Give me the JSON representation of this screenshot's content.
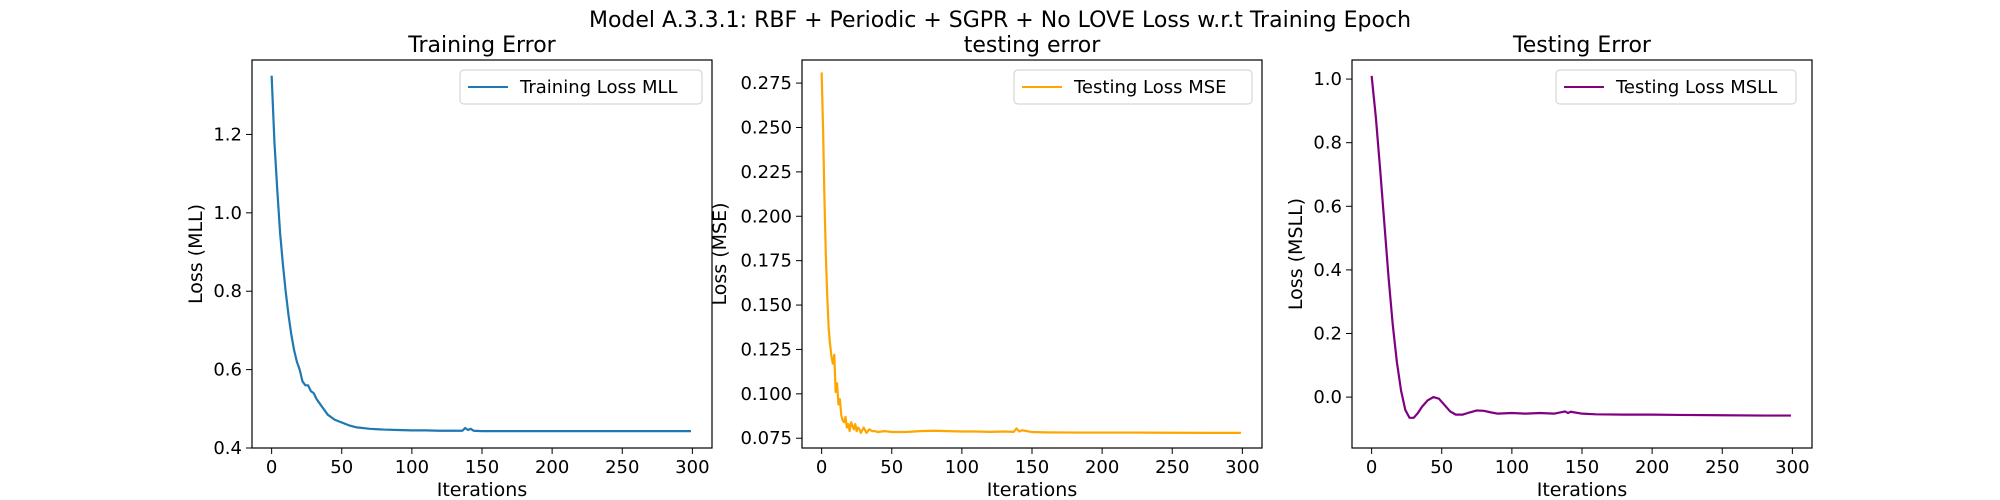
{
  "figure": {
    "title": "Model A.3.3.1: RBF + Periodic + SGPR + No LOVE Loss w.r.t Training Epoch"
  },
  "chart_data": [
    {
      "type": "line",
      "title": "Training Error",
      "xlabel": "Iterations",
      "ylabel": "Loss (MLL)",
      "xlim": [
        -14,
        314
      ],
      "ylim": [
        0.4,
        1.39
      ],
      "xticks": [
        0,
        50,
        100,
        150,
        200,
        250,
        300
      ],
      "yticks": [
        0.4,
        0.6,
        0.8,
        1.0,
        1.2
      ],
      "ytick_labels": [
        "0.4",
        "0.6",
        "0.8",
        "1.0",
        "1.2"
      ],
      "legend_position": "upper right",
      "grid": false,
      "series": [
        {
          "name": "Training Loss MLL",
          "color": "#1f77b4",
          "x": [
            0,
            2,
            4,
            6,
            8,
            10,
            12,
            14,
            16,
            18,
            20,
            22,
            24,
            26,
            28,
            30,
            32,
            34,
            36,
            38,
            40,
            45,
            50,
            55,
            60,
            70,
            80,
            90,
            100,
            110,
            120,
            130,
            136,
            138,
            140,
            142,
            144,
            150,
            160,
            180,
            200,
            220,
            250,
            280,
            299
          ],
          "y": [
            1.35,
            1.18,
            1.06,
            0.95,
            0.87,
            0.8,
            0.74,
            0.69,
            0.65,
            0.62,
            0.6,
            0.57,
            0.56,
            0.56,
            0.545,
            0.54,
            0.525,
            0.515,
            0.505,
            0.495,
            0.485,
            0.472,
            0.465,
            0.458,
            0.453,
            0.449,
            0.447,
            0.446,
            0.445,
            0.445,
            0.444,
            0.444,
            0.444,
            0.451,
            0.446,
            0.449,
            0.444,
            0.443,
            0.443,
            0.443,
            0.443,
            0.443,
            0.443,
            0.443,
            0.443
          ]
        }
      ]
    },
    {
      "type": "line",
      "title": "testing error",
      "xlabel": "Iterations",
      "ylabel": "Loss (MSE)",
      "xlim": [
        -14,
        314
      ],
      "ylim": [
        0.0695,
        0.288
      ],
      "xticks": [
        0,
        50,
        100,
        150,
        200,
        250,
        300
      ],
      "yticks": [
        0.075,
        0.1,
        0.125,
        0.15,
        0.175,
        0.2,
        0.225,
        0.25,
        0.275
      ],
      "ytick_labels": [
        "0.075",
        "0.100",
        "0.125",
        "0.150",
        "0.175",
        "0.200",
        "0.225",
        "0.250",
        "0.275"
      ],
      "legend_position": "upper right",
      "grid": false,
      "series": [
        {
          "name": "Testing Loss MSE",
          "color": "#ffa500",
          "x": [
            0,
            1,
            2,
            3,
            4,
            5,
            6,
            7,
            8,
            9,
            10,
            11,
            12,
            13,
            14,
            15,
            16,
            17,
            18,
            19,
            20,
            21,
            22,
            23,
            24,
            25,
            26,
            27,
            28,
            30,
            32,
            34,
            36,
            38,
            40,
            45,
            50,
            60,
            70,
            80,
            90,
            100,
            110,
            120,
            130,
            137,
            139,
            141,
            143,
            150,
            160,
            180,
            200,
            220,
            250,
            280,
            299
          ],
          "y": [
            0.281,
            0.25,
            0.21,
            0.178,
            0.155,
            0.137,
            0.128,
            0.121,
            0.117,
            0.122,
            0.101,
            0.106,
            0.094,
            0.097,
            0.088,
            0.085,
            0.084,
            0.087,
            0.081,
            0.083,
            0.079,
            0.084,
            0.082,
            0.08,
            0.083,
            0.079,
            0.081,
            0.08,
            0.078,
            0.081,
            0.078,
            0.08,
            0.079,
            0.079,
            0.0785,
            0.079,
            0.0785,
            0.0785,
            0.079,
            0.0792,
            0.079,
            0.0788,
            0.0788,
            0.0786,
            0.0788,
            0.0786,
            0.0805,
            0.0788,
            0.0795,
            0.0785,
            0.0783,
            0.0782,
            0.0782,
            0.0782,
            0.0781,
            0.078,
            0.078
          ]
        }
      ]
    },
    {
      "type": "line",
      "title": "Testing Error",
      "xlabel": "Iterations",
      "ylabel": "Loss (MSLL)",
      "xlim": [
        -14,
        314
      ],
      "ylim": [
        -0.16,
        1.06
      ],
      "xticks": [
        0,
        50,
        100,
        150,
        200,
        250,
        300
      ],
      "yticks": [
        0.0,
        0.2,
        0.4,
        0.6,
        0.8,
        1.0
      ],
      "ytick_labels": [
        "0.0",
        "0.2",
        "0.4",
        "0.6",
        "0.8",
        "1.0"
      ],
      "legend_position": "upper right",
      "grid": false,
      "series": [
        {
          "name": "Testing Loss MSLL",
          "color": "#800080",
          "x": [
            0,
            3,
            6,
            9,
            12,
            15,
            18,
            21,
            24,
            27,
            30,
            33,
            36,
            40,
            44,
            48,
            52,
            56,
            60,
            65,
            70,
            75,
            80,
            85,
            90,
            100,
            110,
            120,
            130,
            138,
            140,
            142,
            150,
            160,
            180,
            200,
            220,
            250,
            280,
            299
          ],
          "y": [
            1.01,
            0.88,
            0.72,
            0.55,
            0.38,
            0.23,
            0.11,
            0.02,
            -0.04,
            -0.065,
            -0.065,
            -0.05,
            -0.03,
            -0.01,
            0.0,
            -0.005,
            -0.025,
            -0.045,
            -0.055,
            -0.055,
            -0.048,
            -0.042,
            -0.043,
            -0.048,
            -0.052,
            -0.05,
            -0.052,
            -0.05,
            -0.052,
            -0.045,
            -0.05,
            -0.046,
            -0.052,
            -0.054,
            -0.055,
            -0.055,
            -0.056,
            -0.057,
            -0.058,
            -0.058
          ]
        }
      ]
    }
  ]
}
